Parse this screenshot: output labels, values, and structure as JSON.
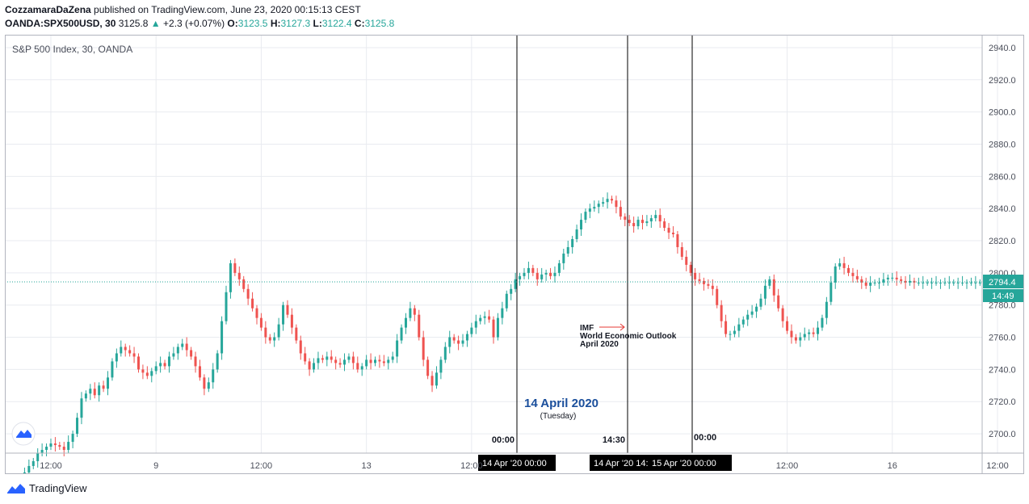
{
  "header": {
    "author": "CozzamaraDaZena",
    "published": " published on TradingView.com, June 23, 2020 00:15:13 CEST",
    "symbol": "OANDA:SPX500USD, 30",
    "last": "3125.8",
    "change": "+2.3 (+0.07%)",
    "o_label": "O:",
    "o": "3123.5",
    "h_label": "H:",
    "h": "3127.3",
    "l_label": "L:",
    "l": "3122.4",
    "c_label": "C:",
    "c": "3125.8"
  },
  "footer": {
    "brand": "TradingView"
  },
  "colors": {
    "up": "#26a69a",
    "down": "#ef5350",
    "grid": "#e9ebf0",
    "accent": "#1e53e5"
  },
  "chart_data": {
    "type": "candlestick",
    "title": "S&P 500 Index, 30, OANDA",
    "ylim": [
      2688,
      2948
    ],
    "yticks": [
      2700,
      2720,
      2740,
      2760,
      2780,
      2800,
      2820,
      2840,
      2860,
      2880,
      2900,
      2920,
      2940
    ],
    "ytick_labels": [
      "2700.0",
      "2720.0",
      "2740.0",
      "2760.0",
      "2780.0",
      "2800.0",
      "2820.0",
      "2840.0",
      "2860.0",
      "2880.0",
      "2900.0",
      "2920.0",
      "2940.0"
    ],
    "xticks": [
      {
        "label": "12:00",
        "idx": 10
      },
      {
        "label": "9",
        "idx": 34
      },
      {
        "label": "12:00",
        "idx": 58
      },
      {
        "label": "13",
        "idx": 82
      },
      {
        "label": "12:00",
        "idx": 106
      },
      {
        "label": "12:00",
        "idx": 178
      },
      {
        "label": "16",
        "idx": 202
      },
      {
        "label": "12:00",
        "idx": 226
      }
    ],
    "closes": [
      2660,
      2665,
      2668,
      2672,
      2676,
      2680,
      2683,
      2688,
      2690,
      2692,
      2694,
      2693,
      2692,
      2690,
      2695,
      2700,
      2710,
      2722,
      2725,
      2728,
      2724,
      2730,
      2728,
      2735,
      2745,
      2750,
      2754,
      2752,
      2750,
      2748,
      2740,
      2738,
      2736,
      2739,
      2742,
      2744,
      2742,
      2748,
      2750,
      2754,
      2756,
      2752,
      2748,
      2742,
      2735,
      2728,
      2732,
      2740,
      2750,
      2770,
      2788,
      2806,
      2800,
      2796,
      2790,
      2784,
      2778,
      2772,
      2766,
      2760,
      2758,
      2760,
      2768,
      2780,
      2774,
      2766,
      2758,
      2750,
      2745,
      2740,
      2744,
      2747,
      2746,
      2748,
      2746,
      2744,
      2743,
      2746,
      2748,
      2744,
      2740,
      2742,
      2746,
      2744,
      2746,
      2745,
      2744,
      2746,
      2748,
      2758,
      2766,
      2772,
      2778,
      2774,
      2760,
      2746,
      2736,
      2730,
      2738,
      2746,
      2754,
      2760,
      2758,
      2756,
      2758,
      2762,
      2766,
      2770,
      2772,
      2773,
      2771,
      2760,
      2772,
      2778,
      2787,
      2790,
      2796,
      2798,
      2800,
      2803,
      2800,
      2796,
      2799,
      2800,
      2798,
      2800,
      2806,
      2812,
      2816,
      2821,
      2827,
      2833,
      2838,
      2840,
      2841,
      2843,
      2844,
      2846,
      2845,
      2841,
      2835,
      2833,
      2831,
      2829,
      2833,
      2831,
      2832,
      2834,
      2836,
      2832,
      2828,
      2825,
      2824,
      2816,
      2810,
      2805,
      2800,
      2796,
      2795,
      2793,
      2792,
      2790,
      2780,
      2770,
      2762,
      2762,
      2764,
      2768,
      2771,
      2774,
      2776,
      2779,
      2784,
      2792,
      2796,
      2786,
      2778,
      2770,
      2764,
      2760,
      2758,
      2760,
      2762,
      2763,
      2762,
      2766,
      2772,
      2782,
      2794,
      2804,
      2806,
      2803,
      2800,
      2798,
      2796,
      2794,
      2792,
      2794,
      2794,
      2794,
      2796,
      2797,
      2797,
      2796,
      2795,
      2794,
      2795,
      2794,
      2794,
      2794,
      2794,
      2794,
      2794,
      2794,
      2794,
      2794,
      2794,
      2794,
      2794,
      2794,
      2794,
      2794,
      2794
    ],
    "last_price": "2794.4",
    "countdown": "14:49",
    "annotations": {
      "date_title": "14 April 2020",
      "date_sub": "(Tuesday)",
      "event_line1": "IMF",
      "event_line2": "World Economic Outlook",
      "event_line3": "April 2020",
      "vline_labels": [
        "00:00",
        "14:30",
        "00:00"
      ],
      "time_badges": [
        "14 Apr '20   00:00",
        "14 Apr '20   14:",
        "15 Apr '20   00:00"
      ]
    }
  }
}
